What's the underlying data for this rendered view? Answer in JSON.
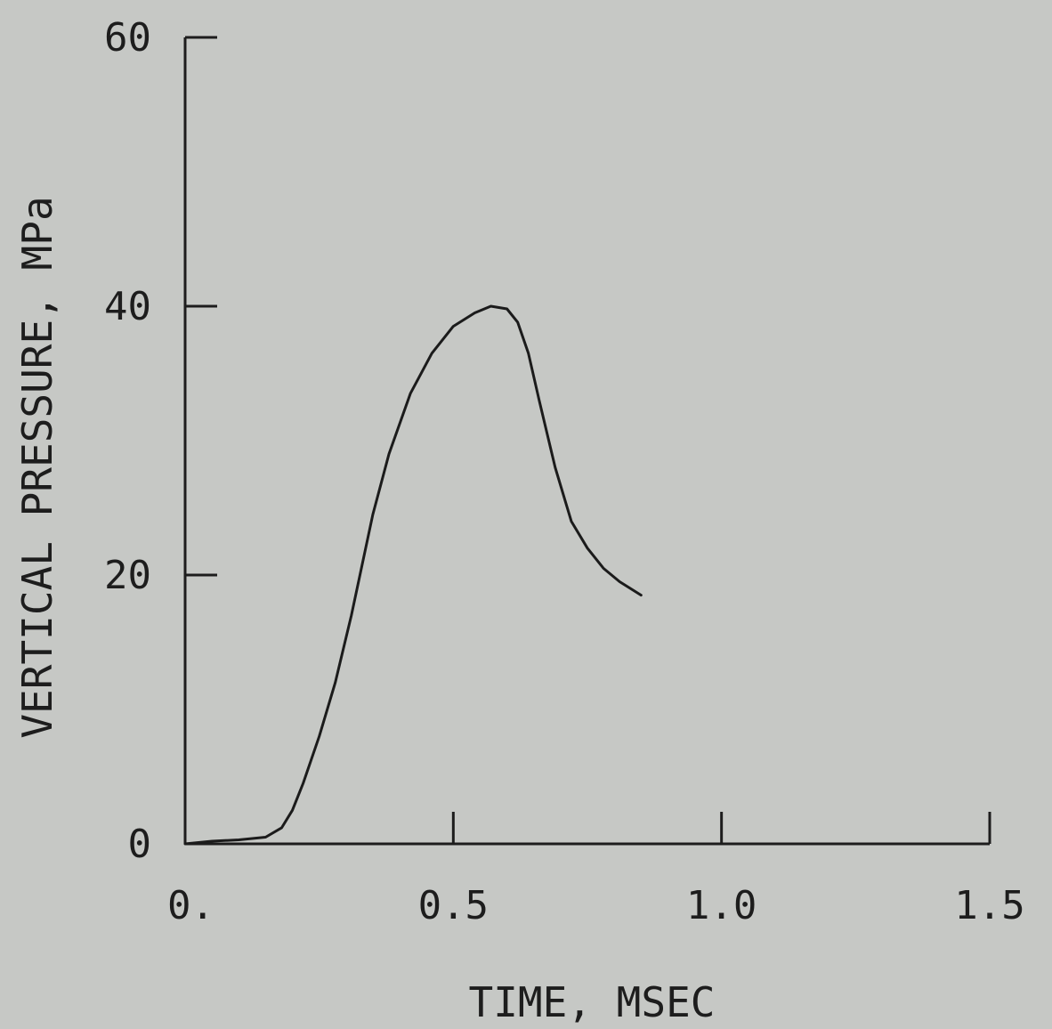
{
  "chart_data": {
    "type": "line",
    "title": "",
    "xlabel": "TIME, MSEC",
    "ylabel": "VERTICAL PRESSURE, MPa",
    "xlim": [
      0,
      1.5
    ],
    "ylim": [
      0,
      60
    ],
    "x_ticks": [
      {
        "value": 0,
        "label": "0."
      },
      {
        "value": 0.5,
        "label": "0.5"
      },
      {
        "value": 1.0,
        "label": "1.0"
      },
      {
        "value": 1.5,
        "label": "1.5"
      }
    ],
    "y_ticks": [
      {
        "value": 0,
        "label": "0"
      },
      {
        "value": 20,
        "label": "20"
      },
      {
        "value": 40,
        "label": "40"
      },
      {
        "value": 60,
        "label": "60"
      }
    ],
    "grid": false,
    "series": [
      {
        "x": [
          0.0,
          0.05,
          0.1,
          0.15,
          0.18,
          0.2,
          0.22,
          0.25,
          0.28,
          0.31,
          0.35,
          0.38,
          0.42,
          0.46,
          0.5,
          0.54,
          0.57,
          0.6,
          0.62,
          0.64,
          0.66,
          0.69,
          0.72,
          0.75,
          0.78,
          0.81,
          0.85
        ],
        "y": [
          0.0,
          0.2,
          0.3,
          0.5,
          1.2,
          2.5,
          4.5,
          8.0,
          12.0,
          17.0,
          24.5,
          29.0,
          33.5,
          36.5,
          38.5,
          39.5,
          40.0,
          39.8,
          38.8,
          36.5,
          33.0,
          28.0,
          24.0,
          22.0,
          20.5,
          19.5,
          18.5
        ]
      }
    ]
  }
}
